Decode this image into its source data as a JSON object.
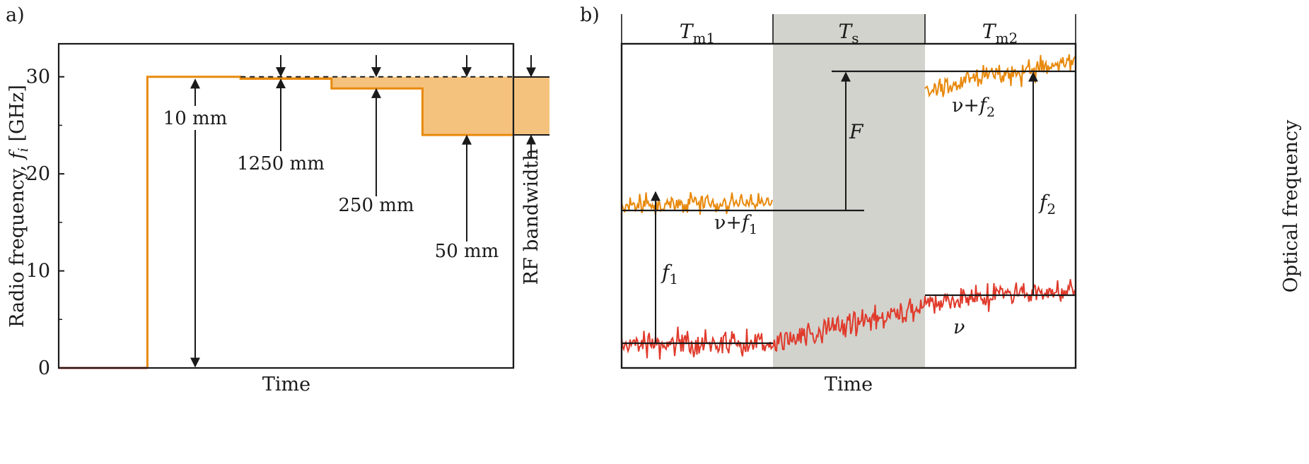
{
  "colors": {
    "orange": "#E8890C",
    "orange_fill": "#F5C27E",
    "red": "#E03A2B",
    "gray_band": "#D3D3CE",
    "ink": "#1a1a1a"
  },
  "chart_data": [
    {
      "panel_label": "a)",
      "type": "line",
      "xlabel": "Time",
      "ylabel_main": "Radio frequency, ",
      "ylabel_var": "f",
      "ylabel_sub": "i",
      "ylabel_unit": " [GHz]",
      "ylim": [
        0,
        33.4
      ],
      "yticks": [
        0,
        10,
        20,
        30
      ],
      "ytick_labels": [
        "0",
        "10",
        "20",
        "30"
      ],
      "grid": false,
      "rf_bandwidth_label": "RF bandwidth",
      "rf_bandwidth_range": [
        24,
        30
      ],
      "series": [
        {
          "color": "red",
          "points": [
            [
              0,
              0
            ],
            [
              0.195,
              0
            ]
          ]
        },
        {
          "color": "orange",
          "points": [
            [
              0.195,
              0
            ],
            [
              0.195,
              30
            ],
            [
              0.4,
              30
            ],
            [
              0.4,
              29.8
            ],
            [
              0.6,
              29.8
            ],
            [
              0.6,
              28.8
            ],
            [
              0.8,
              28.8
            ],
            [
              0.8,
              24
            ],
            [
              1.0,
              24
            ]
          ]
        }
      ],
      "annotations": [
        {
          "text": "10 mm",
          "value": 30
        },
        {
          "text": "1250 mm",
          "value": 29.8
        },
        {
          "text": "250 mm",
          "value": 28.8
        },
        {
          "text": "50 mm",
          "value": 24
        }
      ]
    },
    {
      "panel_label": "b)",
      "type": "line",
      "xlabel": "Time",
      "ylabel": "Optical frequency",
      "intervals": [
        {
          "base": "T",
          "sub": "m1"
        },
        {
          "base": "T",
          "sub": "s"
        },
        {
          "base": "T",
          "sub": "m2"
        }
      ],
      "series": [
        {
          "label_base": "ν+",
          "label_var": "f",
          "label_sub": "1",
          "color": "orange",
          "segment": "Tm1",
          "mean_level": 0.48
        },
        {
          "label_base": "ν+",
          "label_var": "f",
          "label_sub": "2",
          "color": "orange",
          "segment": "Tm2",
          "mean_level": 0.92
        },
        {
          "label_base": "ν",
          "label_var": "",
          "label_sub": "",
          "color": "red",
          "segment": "all",
          "mean_start": 0.09,
          "mean_end": 0.22
        }
      ],
      "annotations": [
        {
          "var": "f",
          "sub": "1"
        },
        {
          "var": "F",
          "sub": ""
        },
        {
          "var": "f",
          "sub": "2"
        }
      ]
    }
  ]
}
